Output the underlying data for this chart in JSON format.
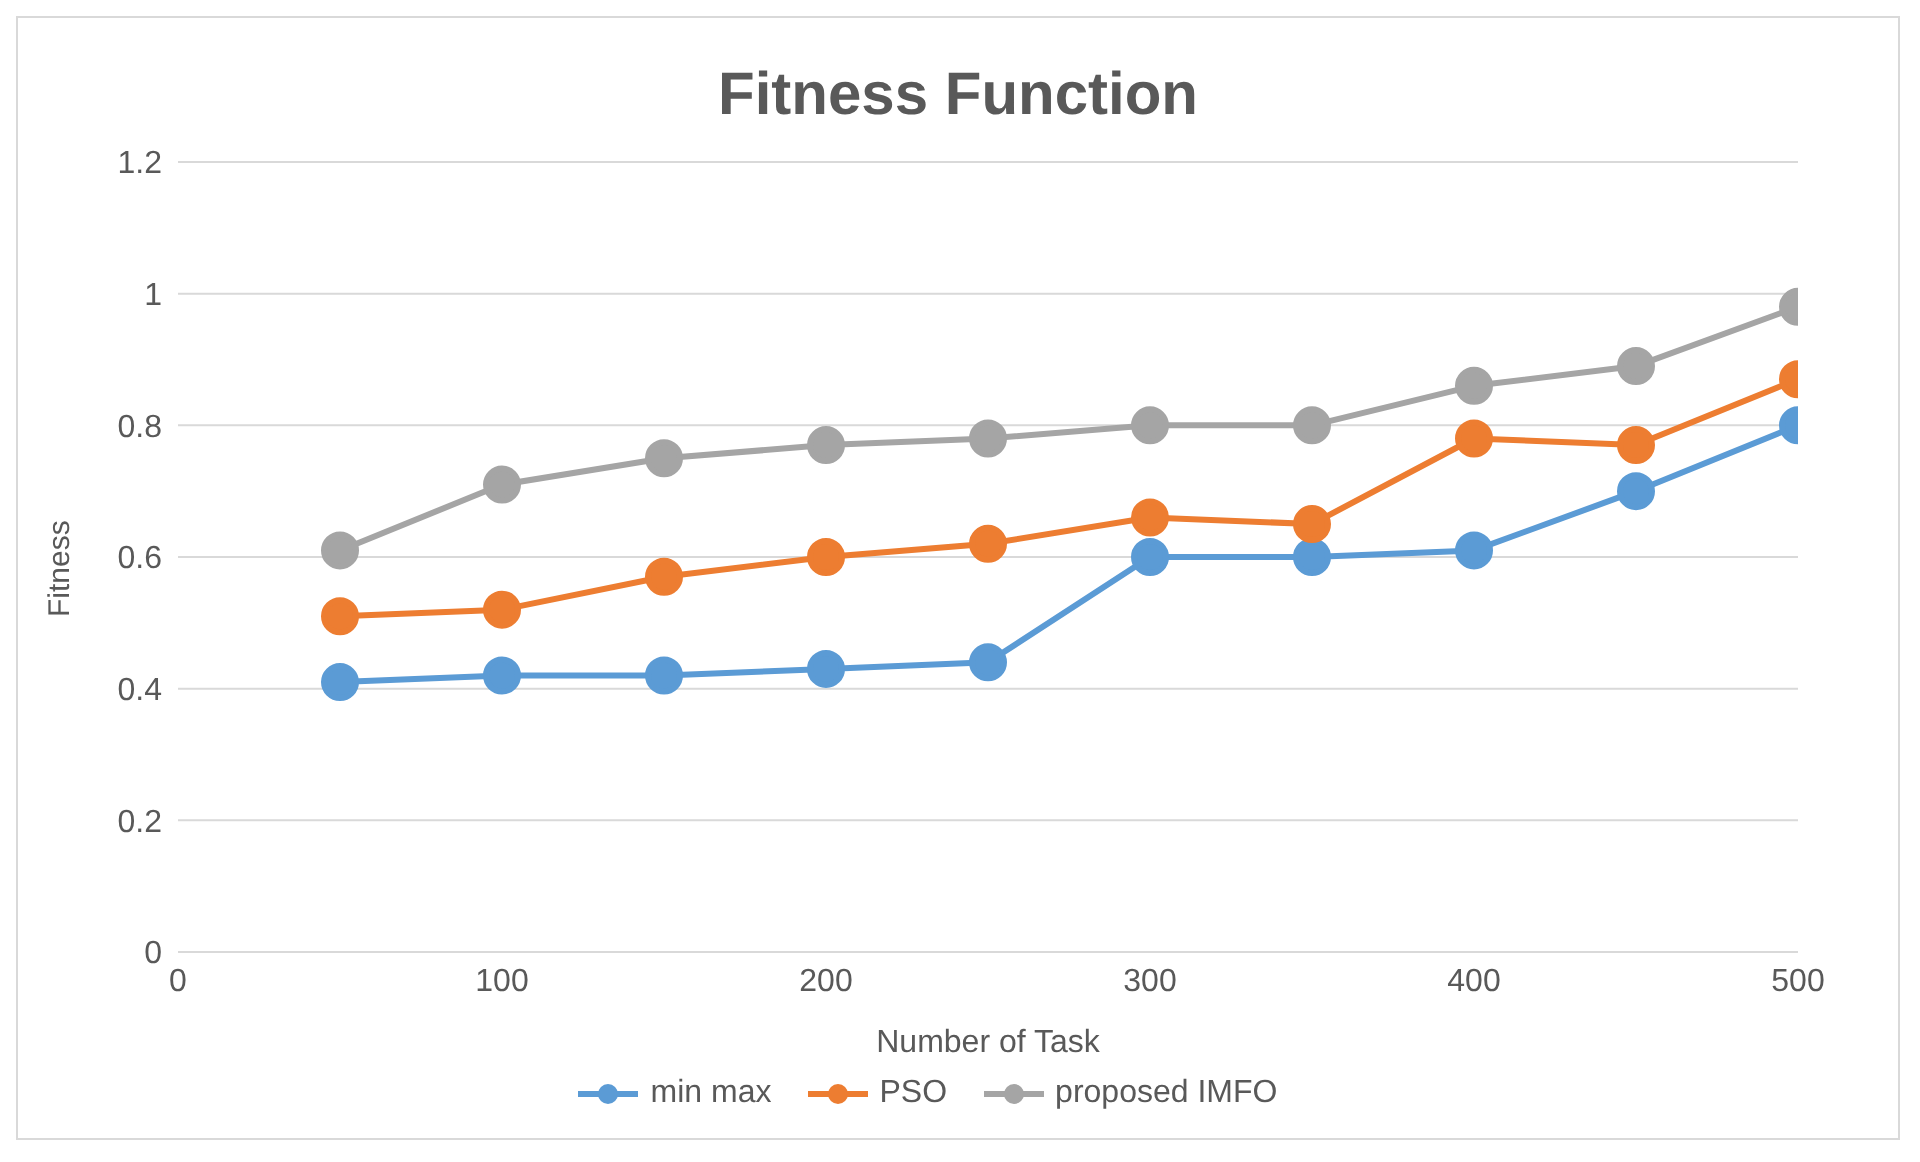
{
  "chart_data": {
    "type": "line",
    "title": "Fitness Function",
    "xlabel": "Number of Task",
    "ylabel": "Fitness",
    "x": [
      50,
      100,
      150,
      200,
      250,
      300,
      350,
      400,
      450,
      500
    ],
    "series": [
      {
        "name": "min max",
        "color": "#5b9bd5",
        "values": [
          0.41,
          0.42,
          0.42,
          0.43,
          0.44,
          0.6,
          0.6,
          0.61,
          0.7,
          0.8
        ]
      },
      {
        "name": "PSO",
        "color": "#ed7d31",
        "values": [
          0.51,
          0.52,
          0.57,
          0.6,
          0.62,
          0.66,
          0.65,
          0.78,
          0.77,
          0.87
        ]
      },
      {
        "name": "proposed IMFO",
        "color": "#a5a5a5",
        "values": [
          0.61,
          0.71,
          0.75,
          0.77,
          0.78,
          0.8,
          0.8,
          0.86,
          0.89,
          0.98
        ]
      }
    ],
    "xlim": [
      0,
      500
    ],
    "xticks": [
      0,
      100,
      200,
      300,
      400,
      500
    ],
    "ylim": [
      0,
      1.2
    ],
    "yticks": [
      0,
      0.2,
      0.4,
      0.6,
      0.8,
      1,
      1.2
    ],
    "grid": "y",
    "legend": "bottom",
    "marker": "circle",
    "line_style": "solid"
  }
}
